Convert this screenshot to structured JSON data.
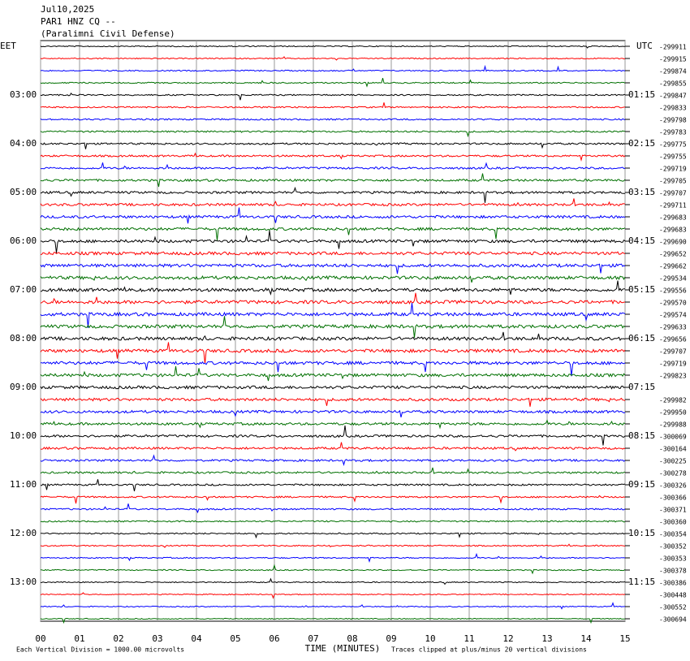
{
  "header": {
    "date": "Jul10,2025",
    "station": "PAR1 HNZ CQ --",
    "site": "(Paralimni Civil Defense)"
  },
  "left_axis": {
    "label": "EET",
    "hours": [
      "03:00",
      "04:00",
      "05:00",
      "06:00",
      "07:00",
      "08:00",
      "09:00",
      "10:00",
      "11:00",
      "12:00",
      "13:00"
    ]
  },
  "right_axis": {
    "label": "UTC",
    "hours": [
      "01:15",
      "02:15",
      "03:15",
      "04:15",
      "05:15",
      "06:15",
      "07:15",
      "08:15",
      "09:15",
      "10:15",
      "11:15"
    ]
  },
  "offsets": [
    -299911,
    -299915,
    -299874,
    -299855,
    -299847,
    -299833,
    -299798,
    -299783,
    -299775,
    -299755,
    -299719,
    -299705,
    -299707,
    -299711,
    -299683,
    -299683,
    -299690,
    -299652,
    -299662,
    -299534,
    -299556,
    -299570,
    -299574,
    -299633,
    -299656,
    -299707,
    -299719,
    -299823,
    null,
    -299982,
    -299950,
    -299988,
    -300069,
    -300164,
    -300225,
    -300278,
    -300326,
    -300366,
    -300371,
    -300360,
    -300354,
    -300352,
    -300353,
    -300378,
    -300386,
    -300448,
    -300552,
    -300694
  ],
  "trace_colors": [
    "#000000",
    "#ff0000",
    "#0000ff",
    "#007000"
  ],
  "xticks": [
    {
      "value": 0,
      "label": "00"
    },
    {
      "value": 1,
      "label": "01"
    },
    {
      "value": 2,
      "label": "02"
    },
    {
      "value": 3,
      "label": "03"
    },
    {
      "value": 4,
      "label": "04"
    },
    {
      "value": 5,
      "label": "05"
    },
    {
      "value": 6,
      "label": "06"
    },
    {
      "value": 7,
      "label": "07"
    },
    {
      "value": 8,
      "label": "08"
    },
    {
      "value": 9,
      "label": "09"
    },
    {
      "value": 10,
      "label": "10"
    },
    {
      "value": 11,
      "label": "11"
    },
    {
      "value": 12,
      "label": "12"
    },
    {
      "value": 13,
      "label": "13"
    },
    {
      "value": 14,
      "label": "14"
    },
    {
      "value": 15,
      "label": "15"
    }
  ],
  "xlim": [
    0,
    15
  ],
  "x_label": "TIME (MINUTES)",
  "footer": {
    "scale": "Each Vertical Division = 1000.00 microvolts",
    "clip": "Traces clipped at plus/minus 20 vertical divisions"
  }
}
